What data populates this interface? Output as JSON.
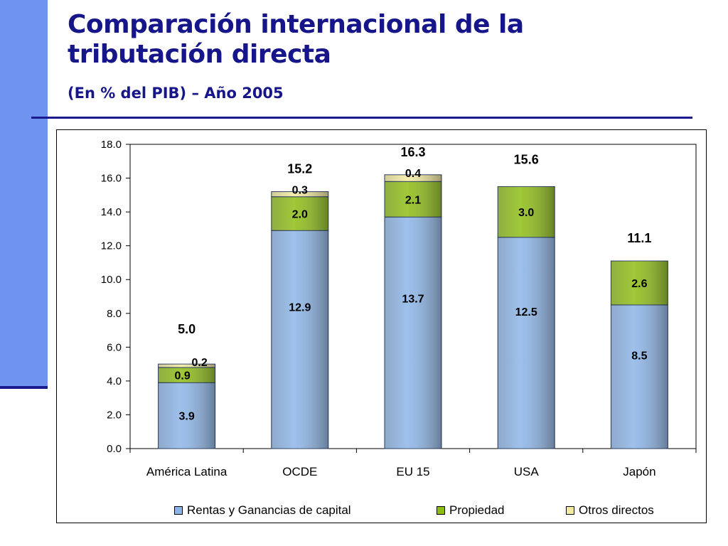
{
  "page": {
    "title_line1": "Comparación internacional de la",
    "title_line2": "tributación directa",
    "subtitle": "(En % del PIB) – Año 2005"
  },
  "colors": {
    "accent_blue": "#16168a",
    "side_bar": "#6f94f0",
    "rentas": "#8ab4e8",
    "propiedad": "#8cbd10",
    "otros": "#f5eb9e"
  },
  "chart_data": {
    "type": "bar",
    "stacked": true,
    "title": "",
    "xlabel": "",
    "ylabel": "",
    "categories": [
      "América Latina",
      "OCDE",
      "EU 15",
      "USA",
      "Japón"
    ],
    "ylim": [
      0,
      18
    ],
    "yticks": [
      "0.0",
      "2.0",
      "4.0",
      "6.0",
      "8.0",
      "10.0",
      "12.0",
      "14.0",
      "16.0",
      "18.0"
    ],
    "grid": false,
    "legend_position": "bottom",
    "series": [
      {
        "name": "Rentas y Ganancias de capital",
        "color": "#8ab4e8",
        "values": [
          3.9,
          12.9,
          13.7,
          12.5,
          8.5
        ],
        "labels": [
          "3.9",
          "12.9",
          "13.7",
          "12.5",
          "8.5"
        ]
      },
      {
        "name": "Propiedad",
        "color": "#8cbd10",
        "values": [
          0.9,
          2.0,
          2.1,
          3.0,
          2.6
        ],
        "labels": [
          "0.9",
          "2.0",
          "2.1",
          "3.0",
          "2.6"
        ]
      },
      {
        "name": "Otros directos",
        "color": "#f5eb9e",
        "values": [
          0.2,
          0.3,
          0.4,
          0.0,
          0.0
        ],
        "labels": [
          "0.2",
          "0.3",
          "0.4",
          "",
          ""
        ]
      }
    ],
    "totals": [
      "5.0",
      "15.2",
      "16.3",
      "15.6",
      "11.1"
    ]
  }
}
